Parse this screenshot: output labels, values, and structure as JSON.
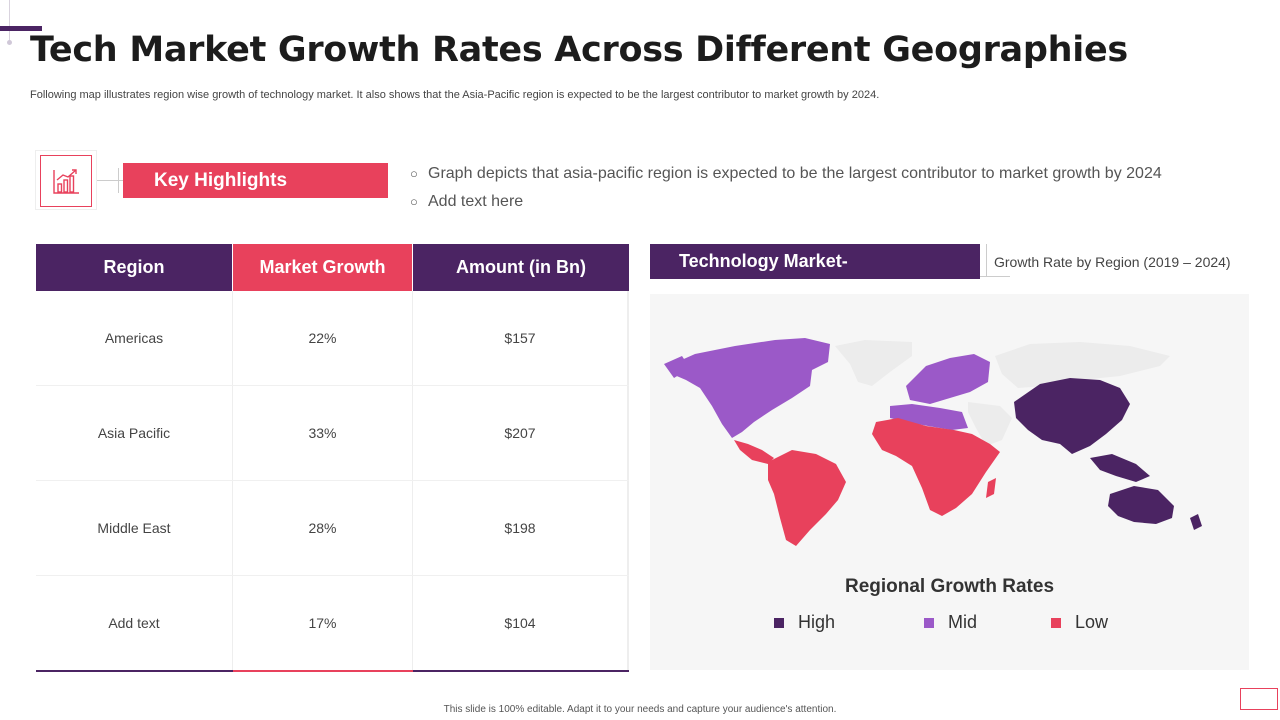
{
  "header": {
    "title": "Tech Market Growth Rates Across Different Geographies",
    "subtitle": "Following map illustrates region wise growth of technology market. It also shows that the Asia-Pacific region is expected to be the largest contributor to market growth by 2024."
  },
  "highlights": {
    "icon": "bar-chart-icon",
    "label": "Key Highlights",
    "bullets": [
      "Graph depicts that asia-pacific region is expected to be the largest contributor  to market growth by 2024",
      "Add text here"
    ],
    "bullet_marker": "○"
  },
  "table": {
    "headers": [
      "Region",
      "Market Growth",
      "Amount (in Bn)"
    ],
    "rows": [
      [
        "Americas",
        "22%",
        "$157"
      ],
      [
        "Asia Pacific",
        "33%",
        "$207"
      ],
      [
        "Middle East",
        "28%",
        "$198"
      ],
      [
        "Add text",
        "17%",
        "$104"
      ]
    ]
  },
  "map": {
    "label": "Technology Market-",
    "sublabel": "Growth Rate by Region (2019 – 2024)",
    "legend_title": "Regional Growth Rates",
    "legend": [
      {
        "label": "High",
        "color": "#4b2463"
      },
      {
        "label": "Mid",
        "color": "#9b59c8"
      },
      {
        "label": "Low",
        "color": "#e8415c"
      }
    ],
    "other_color": "#ececec"
  },
  "colors": {
    "purple": "#4b2463",
    "red": "#e8415c"
  },
  "footer": {
    "text": "This slide is 100% editable. Adapt it to your needs and capture your audience's attention."
  }
}
